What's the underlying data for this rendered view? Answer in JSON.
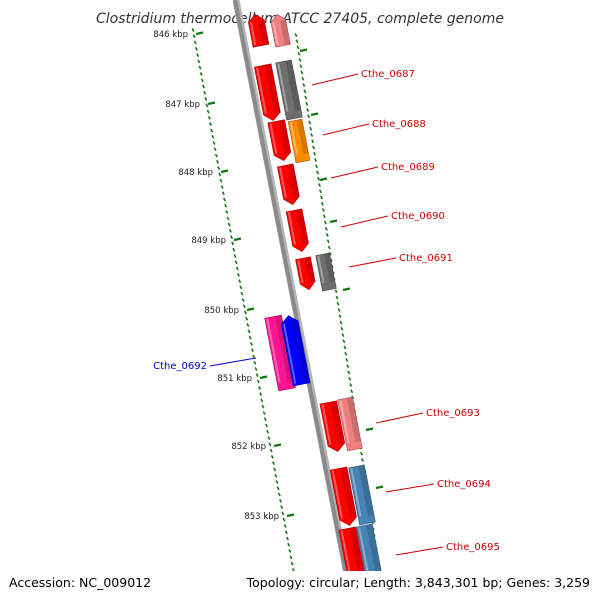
{
  "title": "Clostridium thermocellum ATCC 27405, complete genome",
  "footer": {
    "accession": "Accession: NC_009012",
    "stats": "Topology: circular; Length: 3,843,301 bp; Genes: 3,259"
  },
  "colors": {
    "background": "#ffffff",
    "backbone": "#8a8a8a",
    "tick": "#117711",
    "label_red": "#cc0000",
    "label_blue": "#0000cc",
    "gene_red": "#ff0000",
    "gene_pink": "#f08080",
    "gene_gray": "#6e6e6e",
    "gene_orange": "#ff8c00",
    "gene_magenta": "#ff1493",
    "gene_blue": "#0000ff",
    "gene_steelblue": "#4682b4"
  },
  "ticks": [
    "846 kbp",
    "847 kbp",
    "848 kbp",
    "849 kbp",
    "850 kbp",
    "851 kbp",
    "852 kbp",
    "853 kbp"
  ],
  "gene_labels": [
    {
      "name": "Cthe_0687",
      "color": "label_red"
    },
    {
      "name": "Cthe_0688",
      "color": "label_red"
    },
    {
      "name": "Cthe_0689",
      "color": "label_red"
    },
    {
      "name": "Cthe_0690",
      "color": "label_red"
    },
    {
      "name": "Cthe_0691",
      "color": "label_red"
    },
    {
      "name": "Cthe_0692",
      "color": "label_blue"
    },
    {
      "name": "Cthe_0693",
      "color": "label_red"
    },
    {
      "name": "Cthe_0694",
      "color": "label_red"
    },
    {
      "name": "Cthe_0695",
      "color": "label_red"
    }
  ],
  "gene_blocks": [
    {
      "color": "gene_red"
    },
    {
      "color": "gene_pink"
    },
    {
      "color": "gene_red"
    },
    {
      "color": "gene_gray"
    },
    {
      "color": "gene_red"
    },
    {
      "color": "gene_orange"
    },
    {
      "color": "gene_red"
    },
    {
      "color": "gene_red"
    },
    {
      "color": "gene_red"
    },
    {
      "color": "gene_gray"
    },
    {
      "color": "gene_magenta"
    },
    {
      "color": "gene_blue"
    },
    {
      "color": "gene_red"
    },
    {
      "color": "gene_pink"
    },
    {
      "color": "gene_red"
    },
    {
      "color": "gene_steelblue"
    },
    {
      "color": "gene_red"
    },
    {
      "color": "gene_steelblue"
    },
    {
      "color": "gene_red"
    }
  ]
}
